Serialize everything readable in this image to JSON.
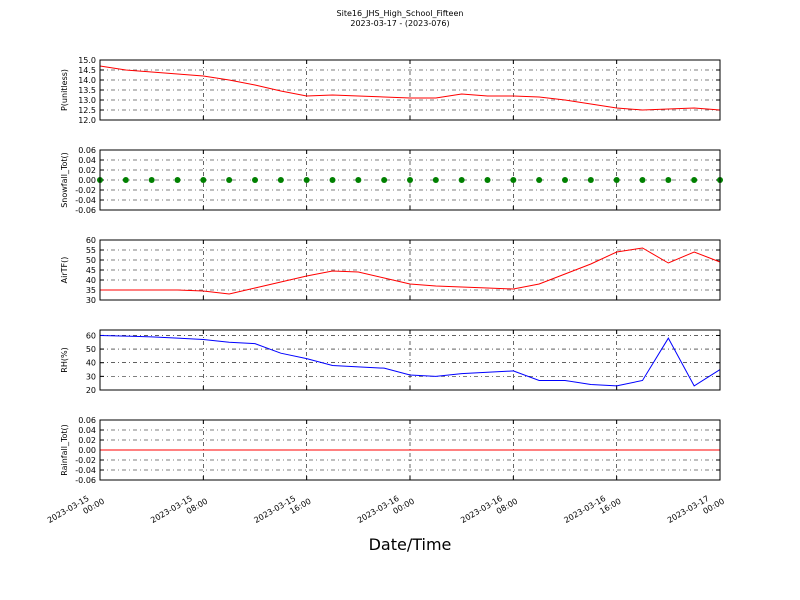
{
  "title": "Site16_JHS_High_School_Fifteen",
  "subtitle": "2023-03-17 - (2023-076)",
  "xlabel": "Date/Time",
  "chart_data": [
    {
      "type": "line",
      "ylabel": "P(unitless)",
      "color": "#ff0000",
      "grid": true,
      "x": [
        "2023-03-15 00:00",
        "2023-03-15 02:00",
        "2023-03-15 04:00",
        "2023-03-15 06:00",
        "2023-03-15 08:00",
        "2023-03-15 10:00",
        "2023-03-15 12:00",
        "2023-03-15 14:00",
        "2023-03-15 16:00",
        "2023-03-15 18:00",
        "2023-03-15 20:00",
        "2023-03-15 22:00",
        "2023-03-16 00:00",
        "2023-03-16 02:00",
        "2023-03-16 04:00",
        "2023-03-16 06:00",
        "2023-03-16 08:00",
        "2023-03-16 10:00",
        "2023-03-16 12:00",
        "2023-03-16 14:00",
        "2023-03-16 16:00",
        "2023-03-16 18:00",
        "2023-03-16 20:00",
        "2023-03-16 22:00",
        "2023-03-17 00:00"
      ],
      "values": [
        14.7,
        14.5,
        14.4,
        14.3,
        14.2,
        14.0,
        13.75,
        13.45,
        13.2,
        13.25,
        13.2,
        13.15,
        13.1,
        13.1,
        13.3,
        13.2,
        13.2,
        13.15,
        13.0,
        12.8,
        12.6,
        12.5,
        12.55,
        12.6,
        12.5
      ],
      "xlim": [
        "2023-03-15 00:00",
        "2023-03-17 00:00"
      ],
      "xticks": [
        "2023-03-15 00:00",
        "2023-03-15 08:00",
        "2023-03-15 16:00",
        "2023-03-16 00:00",
        "2023-03-16 08:00",
        "2023-03-16 16:00",
        "2023-03-17 00:00"
      ],
      "ylim": [
        12,
        15
      ],
      "yticks": [
        {
          "value": 12,
          "label": "12.0"
        },
        12.5,
        {
          "value": 13,
          "label": "13.0"
        },
        13.5,
        {
          "value": 14,
          "label": "14.0"
        },
        14.5,
        {
          "value": 15,
          "label": "15.0"
        }
      ]
    },
    {
      "type": "line",
      "marker": true,
      "ylabel": "Snowfall_Tot()",
      "color": "#008000",
      "grid": true,
      "x": [
        "2023-03-15 00:00",
        "2023-03-15 02:00",
        "2023-03-15 04:00",
        "2023-03-15 06:00",
        "2023-03-15 08:00",
        "2023-03-15 10:00",
        "2023-03-15 12:00",
        "2023-03-15 14:00",
        "2023-03-15 16:00",
        "2023-03-15 18:00",
        "2023-03-15 20:00",
        "2023-03-15 22:00",
        "2023-03-16 00:00",
        "2023-03-16 02:00",
        "2023-03-16 04:00",
        "2023-03-16 06:00",
        "2023-03-16 08:00",
        "2023-03-16 10:00",
        "2023-03-16 12:00",
        "2023-03-16 14:00",
        "2023-03-16 16:00",
        "2023-03-16 18:00",
        "2023-03-16 20:00",
        "2023-03-16 22:00",
        "2023-03-17 00:00"
      ],
      "values": [
        0,
        0,
        0,
        0,
        0,
        0,
        0,
        0,
        0,
        0,
        0,
        0,
        0,
        0,
        0,
        0,
        0,
        0,
        0,
        0,
        0,
        0,
        0,
        0,
        0
      ],
      "xlim": [
        "2023-03-15 00:00",
        "2023-03-17 00:00"
      ],
      "xticks": [
        "2023-03-15 00:00",
        "2023-03-15 08:00",
        "2023-03-15 16:00",
        "2023-03-16 00:00",
        "2023-03-16 08:00",
        "2023-03-16 16:00",
        "2023-03-17 00:00"
      ],
      "ylim": [
        -0.06,
        0.06
      ],
      "yticks": [
        -0.06,
        -0.04,
        -0.02,
        {
          "value": 0,
          "label": "0.00"
        },
        0.02,
        0.04,
        0.06
      ]
    },
    {
      "type": "line",
      "ylabel": "AirTF()",
      "color": "#ff0000",
      "grid": true,
      "x": [
        "2023-03-15 00:00",
        "2023-03-15 02:00",
        "2023-03-15 04:00",
        "2023-03-15 06:00",
        "2023-03-15 08:00",
        "2023-03-15 10:00",
        "2023-03-15 12:00",
        "2023-03-15 14:00",
        "2023-03-15 16:00",
        "2023-03-15 18:00",
        "2023-03-15 20:00",
        "2023-03-15 22:00",
        "2023-03-16 00:00",
        "2023-03-16 02:00",
        "2023-03-16 04:00",
        "2023-03-16 06:00",
        "2023-03-16 08:00",
        "2023-03-16 10:00",
        "2023-03-16 12:00",
        "2023-03-16 14:00",
        "2023-03-16 16:00",
        "2023-03-16 18:00",
        "2023-03-16 20:00",
        "2023-03-16 22:00",
        "2023-03-17 00:00"
      ],
      "values": [
        35,
        35,
        35,
        35,
        34.5,
        33,
        36,
        39,
        42,
        44.5,
        44,
        41,
        38,
        37,
        36.5,
        36,
        35.5,
        38,
        43,
        48,
        54,
        56,
        48.5,
        54,
        49
      ],
      "xlim": [
        "2023-03-15 00:00",
        "2023-03-17 00:00"
      ],
      "xticks": [
        "2023-03-15 00:00",
        "2023-03-15 08:00",
        "2023-03-15 16:00",
        "2023-03-16 00:00",
        "2023-03-16 08:00",
        "2023-03-16 16:00",
        "2023-03-17 00:00"
      ],
      "ylim": [
        30,
        60
      ],
      "yticks": [
        30,
        35,
        40,
        45,
        50,
        55,
        60
      ]
    },
    {
      "type": "line",
      "ylabel": "RH(%)",
      "color": "#0000ff",
      "grid": true,
      "x": [
        "2023-03-15 00:00",
        "2023-03-15 02:00",
        "2023-03-15 04:00",
        "2023-03-15 06:00",
        "2023-03-15 08:00",
        "2023-03-15 10:00",
        "2023-03-15 12:00",
        "2023-03-15 14:00",
        "2023-03-15 16:00",
        "2023-03-15 18:00",
        "2023-03-15 20:00",
        "2023-03-15 22:00",
        "2023-03-16 00:00",
        "2023-03-16 02:00",
        "2023-03-16 04:00",
        "2023-03-16 06:00",
        "2023-03-16 08:00",
        "2023-03-16 10:00",
        "2023-03-16 12:00",
        "2023-03-16 14:00",
        "2023-03-16 16:00",
        "2023-03-16 18:00",
        "2023-03-16 20:00",
        "2023-03-16 22:00",
        "2023-03-17 00:00"
      ],
      "values": [
        60,
        59.5,
        59,
        58,
        57,
        55,
        54,
        47,
        43,
        38,
        37,
        36,
        31,
        30,
        32,
        33,
        34,
        27,
        27,
        24,
        23,
        27,
        58,
        23,
        35
      ],
      "xlim": [
        "2023-03-15 00:00",
        "2023-03-17 00:00"
      ],
      "xticks": [
        "2023-03-15 00:00",
        "2023-03-15 08:00",
        "2023-03-15 16:00",
        "2023-03-16 00:00",
        "2023-03-16 08:00",
        "2023-03-16 16:00",
        "2023-03-17 00:00"
      ],
      "ylim": [
        20,
        64
      ],
      "yticks": [
        20,
        30,
        40,
        50,
        60
      ]
    },
    {
      "type": "line",
      "ylabel": "Rainfall_Tot()",
      "color": "#ff0000",
      "grid": true,
      "show_xtick_labels": true,
      "x": [
        "2023-03-15 00:00",
        "2023-03-15 02:00",
        "2023-03-15 04:00",
        "2023-03-15 06:00",
        "2023-03-15 08:00",
        "2023-03-15 10:00",
        "2023-03-15 12:00",
        "2023-03-15 14:00",
        "2023-03-15 16:00",
        "2023-03-15 18:00",
        "2023-03-15 20:00",
        "2023-03-15 22:00",
        "2023-03-16 00:00",
        "2023-03-16 02:00",
        "2023-03-16 04:00",
        "2023-03-16 06:00",
        "2023-03-16 08:00",
        "2023-03-16 10:00",
        "2023-03-16 12:00",
        "2023-03-16 14:00",
        "2023-03-16 16:00",
        "2023-03-16 18:00",
        "2023-03-16 20:00",
        "2023-03-16 22:00",
        "2023-03-17 00:00"
      ],
      "values": [
        0,
        0,
        0,
        0,
        0,
        0,
        0,
        0,
        0,
        0,
        0,
        0,
        0,
        0,
        0,
        0,
        0,
        0,
        0,
        0,
        0,
        0,
        0,
        0,
        0
      ],
      "xlim": [
        "2023-03-15 00:00",
        "2023-03-17 00:00"
      ],
      "xticks": [
        "2023-03-15 00:00",
        "2023-03-15 08:00",
        "2023-03-15 16:00",
        "2023-03-16 00:00",
        "2023-03-16 08:00",
        "2023-03-16 16:00",
        "2023-03-17 00:00"
      ],
      "ylim": [
        -0.06,
        0.06
      ],
      "yticks": [
        -0.06,
        -0.04,
        -0.02,
        {
          "value": 0,
          "label": "0.00"
        },
        0.02,
        0.04,
        0.06
      ]
    }
  ]
}
